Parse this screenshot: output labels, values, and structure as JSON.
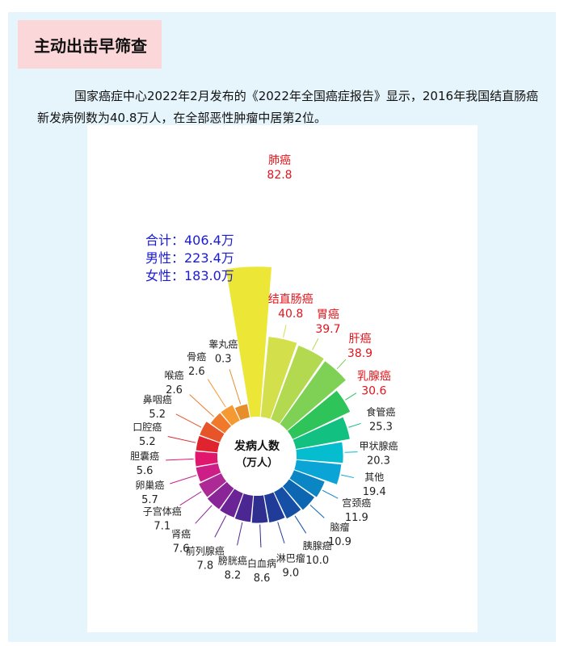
{
  "header": {
    "title": "主动出击早筛查"
  },
  "intro": {
    "text": "国家癌症中心2022年2月发布的《2022年全国癌症报告》显示，2016年我国结直肠癌新发病例数为40.8万人，在全部恶性肿瘤中居第2位。"
  },
  "summary": {
    "lines": [
      "合计：406.4万",
      "男性：223.4万",
      "女性：183.0万"
    ],
    "color": "#1a1adb"
  },
  "chart_data": {
    "type": "polar-bar",
    "center_label": [
      "发病人数",
      "（万人）"
    ],
    "highlight_color": "#e3141b",
    "series": [
      {
        "name": "肺癌",
        "value": 82.8,
        "color": "#ece737",
        "highlight": true
      },
      {
        "name": "结直肠癌",
        "value": 40.8,
        "color": "#d3e04c",
        "highlight": true
      },
      {
        "name": "胃癌",
        "value": 39.7,
        "color": "#b2d94f",
        "highlight": true
      },
      {
        "name": "肝癌",
        "value": 38.9,
        "color": "#7ed154",
        "highlight": true
      },
      {
        "name": "乳腺癌",
        "value": 30.6,
        "color": "#2ec45a",
        "highlight": true
      },
      {
        "name": "食管癌",
        "value": 25.3,
        "color": "#12c081",
        "highlight": false
      },
      {
        "name": "甲状腺癌",
        "value": 20.3,
        "color": "#06bccf",
        "highlight": false
      },
      {
        "name": "其他",
        "value": 19.4,
        "color": "#0aa4d6",
        "highlight": false
      },
      {
        "name": "宫颈癌",
        "value": 11.9,
        "color": "#0a86c4",
        "highlight": false
      },
      {
        "name": "脑瘤",
        "value": 10.9,
        "color": "#0d66b1",
        "highlight": false
      },
      {
        "name": "胰腺癌",
        "value": 10.0,
        "color": "#1550a6",
        "highlight": false
      },
      {
        "name": "淋巴瘤",
        "value": 9.0,
        "color": "#203c98",
        "highlight": false
      },
      {
        "name": "白血病",
        "value": 8.6,
        "color": "#2e2f8e",
        "highlight": false
      },
      {
        "name": "膀胱癌",
        "value": 8.2,
        "color": "#4b2891",
        "highlight": false
      },
      {
        "name": "前列腺癌",
        "value": 7.8,
        "color": "#6a2495",
        "highlight": false
      },
      {
        "name": "肾癌",
        "value": 7.6,
        "color": "#8a2598",
        "highlight": false
      },
      {
        "name": "子宫体癌",
        "value": 7.1,
        "color": "#ad2a96",
        "highlight": false
      },
      {
        "name": "卵巢癌",
        "value": 5.7,
        "color": "#cd1e88",
        "highlight": false
      },
      {
        "name": "胆囊癌",
        "value": 5.6,
        "color": "#e0176c",
        "highlight": false
      },
      {
        "name": "口腔癌",
        "value": 5.2,
        "color": "#e0242f",
        "highlight": false
      },
      {
        "name": "鼻咽癌",
        "value": 5.2,
        "color": "#e8542a",
        "highlight": false
      },
      {
        "name": "喉癌",
        "value": 2.6,
        "color": "#f0792b",
        "highlight": false
      },
      {
        "name": "骨癌",
        "value": 2.6,
        "color": "#f59a32",
        "highlight": false
      },
      {
        "name": "睾丸癌",
        "value": 0.3,
        "color": "#e58e2b",
        "highlight": false
      }
    ]
  }
}
